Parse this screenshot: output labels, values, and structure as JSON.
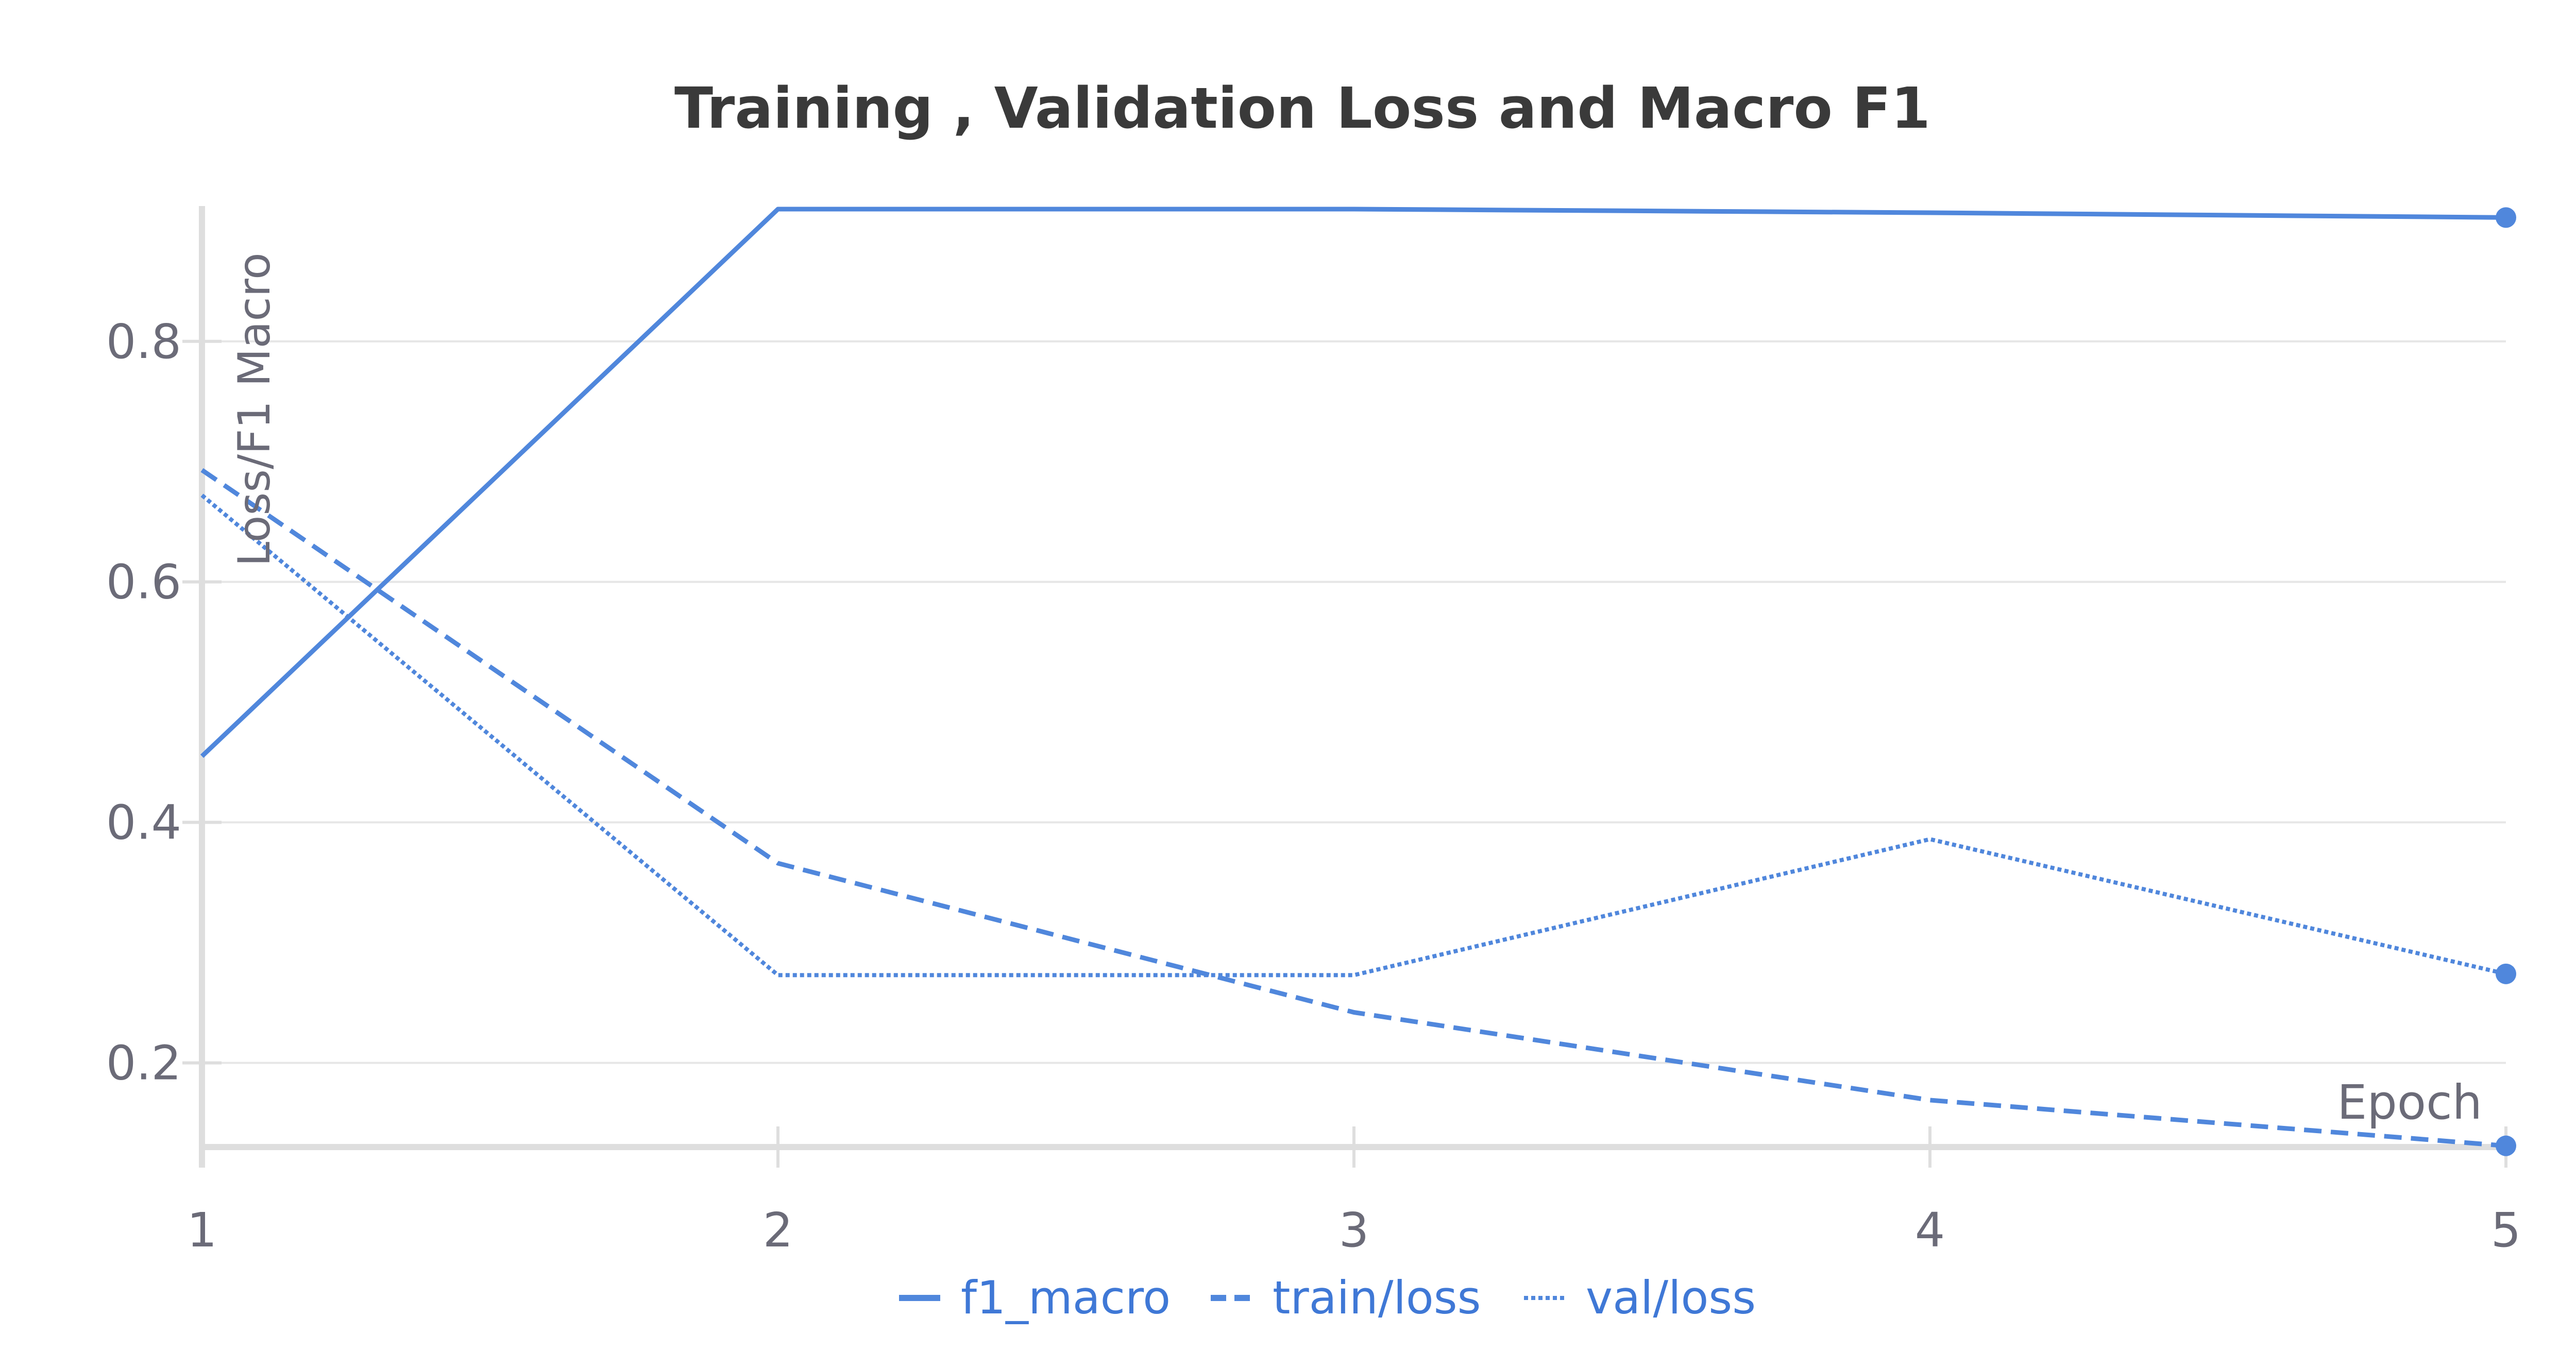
{
  "chart_data": {
    "type": "line",
    "title": "Training , Validation Loss and Macro F1",
    "xlabel": "Epoch",
    "ylabel": "Loss/F1 Macro",
    "x": [
      1,
      2,
      3,
      4,
      5
    ],
    "xlim": [
      1,
      5
    ],
    "ylim": [
      0.13,
      0.91
    ],
    "yticks": [
      0.2,
      0.4,
      0.6,
      0.8
    ],
    "xticks": [
      1,
      2,
      3,
      4,
      5
    ],
    "grid": true,
    "legend": "bottom-center",
    "series": [
      {
        "name": "f1_macro",
        "style": "solid",
        "values": [
          0.455,
          0.91,
          0.91,
          0.907,
          0.903
        ]
      },
      {
        "name": "train/loss",
        "style": "dashed",
        "values": [
          0.693,
          0.366,
          0.242,
          0.169,
          0.131
        ]
      },
      {
        "name": "val/loss",
        "style": "dotted",
        "values": [
          0.672,
          0.273,
          0.273,
          0.386,
          0.274
        ]
      }
    ],
    "colors": {
      "series": "#5087dc",
      "title": "#3a3a3a",
      "tick": "#6b6b78",
      "grid": "#e6e6e6",
      "axis": "#dedede",
      "legend_text": "#3f78d6"
    }
  }
}
